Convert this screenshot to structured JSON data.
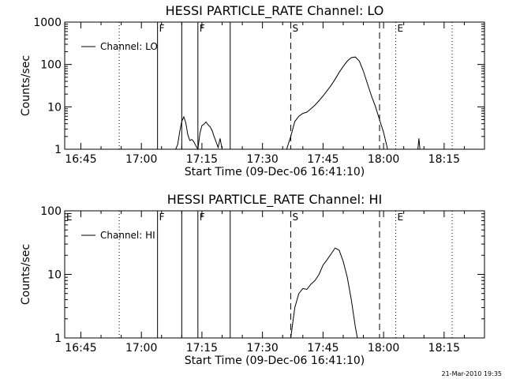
{
  "footer": {
    "timestamp": "21-Mar-2010 19:35"
  },
  "chart_data": [
    {
      "type": "line",
      "title": "HESSI PARTICLE_RATE Channel: LO",
      "xlabel": "Start Time (09-Dec-06 16:41:10)",
      "ylabel": "Counts/sec",
      "yscale": "log",
      "ylim": [
        1,
        1000
      ],
      "yticks": [
        {
          "value": 1,
          "label": "1"
        },
        {
          "value": 10,
          "label": "10"
        },
        {
          "value": 100,
          "label": "100"
        },
        {
          "value": 1000,
          "label": "1000"
        }
      ],
      "xlim": [
        "16:41",
        "18:25"
      ],
      "xticks": [
        "16:45",
        "17:00",
        "17:15",
        "17:30",
        "17:45",
        "18:00",
        "18:15"
      ],
      "legend": {
        "position": "top-left",
        "entries": [
          "Channel: LO"
        ]
      },
      "markers": [
        {
          "time": "16:54:30",
          "style": "dotted",
          "label": ""
        },
        {
          "time": "17:04",
          "style": "solid",
          "label": "F"
        },
        {
          "time": "17:10",
          "style": "solid",
          "label": ""
        },
        {
          "time": "17:14",
          "style": "solid",
          "label": "F"
        },
        {
          "time": "17:22",
          "style": "solid",
          "label": ""
        },
        {
          "time": "17:37",
          "style": "dashed",
          "label": "S"
        },
        {
          "time": "17:59",
          "style": "dashed",
          "label": ""
        },
        {
          "time": "18:03",
          "style": "dotted",
          "label": "E"
        },
        {
          "time": "18:17",
          "style": "dotted",
          "label": ""
        }
      ],
      "series": [
        {
          "name": "Channel: LO",
          "segments": [
            [
              [
                "17:08:30",
                1
              ],
              [
                "17:09",
                1.3
              ],
              [
                "17:09:30",
                2.6
              ],
              [
                "17:10",
                4.5
              ],
              [
                "17:10:30",
                5.8
              ],
              [
                "17:11",
                4.2
              ],
              [
                "17:11:30",
                2.2
              ],
              [
                "17:12",
                1.6
              ],
              [
                "17:12:30",
                1.7
              ],
              [
                "17:13",
                1.5
              ],
              [
                "17:13:30",
                1.2
              ],
              [
                "17:14",
                1
              ],
              [
                "17:14:30",
                2.4
              ],
              [
                "17:15",
                3.6
              ],
              [
                "17:15:30",
                3.9
              ],
              [
                "17:16",
                4.4
              ],
              [
                "17:16:30",
                3.8
              ],
              [
                "17:17",
                3.4
              ],
              [
                "17:17:30",
                2.8
              ],
              [
                "17:18",
                2
              ],
              [
                "17:18:30",
                1.5
              ],
              [
                "17:19",
                1.1
              ],
              [
                "17:19:30",
                1.8
              ],
              [
                "17:20",
                1
              ]
            ],
            [
              [
                "17:36",
                1
              ],
              [
                "17:37",
                2
              ],
              [
                "17:38",
                4.5
              ],
              [
                "17:39",
                6
              ],
              [
                "17:40",
                7
              ],
              [
                "17:41",
                7.5
              ],
              [
                "17:42",
                9
              ],
              [
                "17:43",
                11
              ],
              [
                "17:44",
                14
              ],
              [
                "17:45",
                18
              ],
              [
                "17:46",
                24
              ],
              [
                "17:47",
                32
              ],
              [
                "17:48",
                45
              ],
              [
                "17:49",
                65
              ],
              [
                "17:50",
                90
              ],
              [
                "17:51",
                120
              ],
              [
                "17:52",
                145
              ],
              [
                "17:53",
                150
              ],
              [
                "17:54",
                120
              ],
              [
                "17:55",
                70
              ],
              [
                "17:56",
                35
              ],
              [
                "17:57",
                18
              ],
              [
                "17:58",
                10
              ],
              [
                "17:59",
                5
              ],
              [
                "18:00",
                2.5
              ],
              [
                "18:01",
                1
              ]
            ],
            [
              [
                "18:08:30",
                1
              ],
              [
                "18:08:45",
                1.8
              ],
              [
                "18:09",
                1
              ]
            ]
          ]
        }
      ]
    },
    {
      "type": "line",
      "title": "HESSI PARTICLE_RATE Channel: HI",
      "xlabel": "Start Time (09-Dec-06 16:41:10)",
      "ylabel": "Counts/sec",
      "yscale": "log",
      "ylim": [
        1,
        100
      ],
      "yticks": [
        {
          "value": 1,
          "label": "1"
        },
        {
          "value": 10,
          "label": "10"
        },
        {
          "value": 100,
          "label": "100"
        }
      ],
      "xlim": [
        "16:41",
        "18:25"
      ],
      "xticks": [
        "16:45",
        "17:00",
        "17:15",
        "17:30",
        "17:45",
        "18:00",
        "18:15"
      ],
      "legend": {
        "position": "top-left",
        "entries": [
          "Channel: HI"
        ]
      },
      "markers": [
        {
          "time": "16:41",
          "style": "none",
          "label": "E"
        },
        {
          "time": "16:54:30",
          "style": "dotted",
          "label": ""
        },
        {
          "time": "17:04",
          "style": "solid",
          "label": "F"
        },
        {
          "time": "17:10",
          "style": "solid",
          "label": ""
        },
        {
          "time": "17:14",
          "style": "solid",
          "label": "F"
        },
        {
          "time": "17:22",
          "style": "solid",
          "label": ""
        },
        {
          "time": "17:37",
          "style": "dashed",
          "label": "S"
        },
        {
          "time": "17:59",
          "style": "dashed",
          "label": ""
        },
        {
          "time": "18:03",
          "style": "dotted",
          "label": "E"
        },
        {
          "time": "18:17",
          "style": "dotted",
          "label": ""
        }
      ],
      "series": [
        {
          "name": "Channel: HI",
          "segments": [
            [
              [
                "17:37",
                1
              ],
              [
                "17:38",
                3
              ],
              [
                "17:39",
                5
              ],
              [
                "17:40",
                6
              ],
              [
                "17:41",
                5.8
              ],
              [
                "17:42",
                7
              ],
              [
                "17:43",
                8
              ],
              [
                "17:44",
                10
              ],
              [
                "17:45",
                14
              ],
              [
                "17:46",
                17
              ],
              [
                "17:47",
                21
              ],
              [
                "17:48",
                26
              ],
              [
                "17:49",
                24
              ],
              [
                "17:50",
                16
              ],
              [
                "17:51",
                9
              ],
              [
                "17:52",
                4
              ],
              [
                "17:53",
                1.5
              ],
              [
                "17:53:30",
                1
              ]
            ]
          ]
        }
      ]
    }
  ]
}
